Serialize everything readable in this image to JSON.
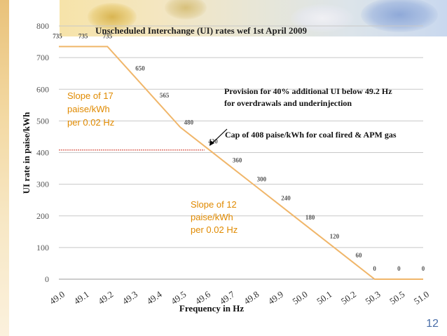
{
  "slide_number": "12",
  "chart_data": {
    "type": "line",
    "title": "Unscheduled Interchange (UI) rates wef  1st April 2009",
    "xlabel": "Frequency in Hz",
    "ylabel": "UI rate in paise/kWh",
    "ylim": [
      0,
      800
    ],
    "yticks": [
      0,
      100,
      200,
      300,
      400,
      500,
      600,
      700,
      800
    ],
    "x_tick_labels": [
      "49.0",
      "49.1",
      "49.2",
      "49.3",
      "49.4",
      "49.5",
      "49.6",
      "49.7",
      "49.8",
      "49.9",
      "50.0",
      "50.1",
      "50.2",
      "50.3",
      "50.5",
      "51.0"
    ],
    "line_color": "#f0b66a",
    "cap_line_color": "#d03020",
    "cap_value": 408,
    "series": [
      {
        "name": "UI rate",
        "values": [
          735,
          735,
          735,
          650,
          565,
          480,
          420,
          360,
          300,
          240,
          180,
          120,
          60,
          0,
          0,
          0
        ]
      }
    ],
    "data_labels": [
      "735",
      "735",
      "735",
      "650",
      "565",
      "480",
      "420",
      "360",
      "300",
      "240",
      "180",
      "120",
      "60",
      "0",
      "0",
      "0"
    ],
    "annotations": {
      "provision_line1": "Provision for 40% additional UI below 49.2 Hz",
      "provision_line2": "for overdrawals and underinjection",
      "cap_text": "Cap of  408 paise/kWh for coal fired & APM gas",
      "slope17": [
        "Slope of 17",
        "paise/kWh",
        "per 0.02 Hz"
      ],
      "slope12": [
        "Slope of 12",
        "paise/kWh",
        "per 0.02 Hz"
      ]
    }
  }
}
